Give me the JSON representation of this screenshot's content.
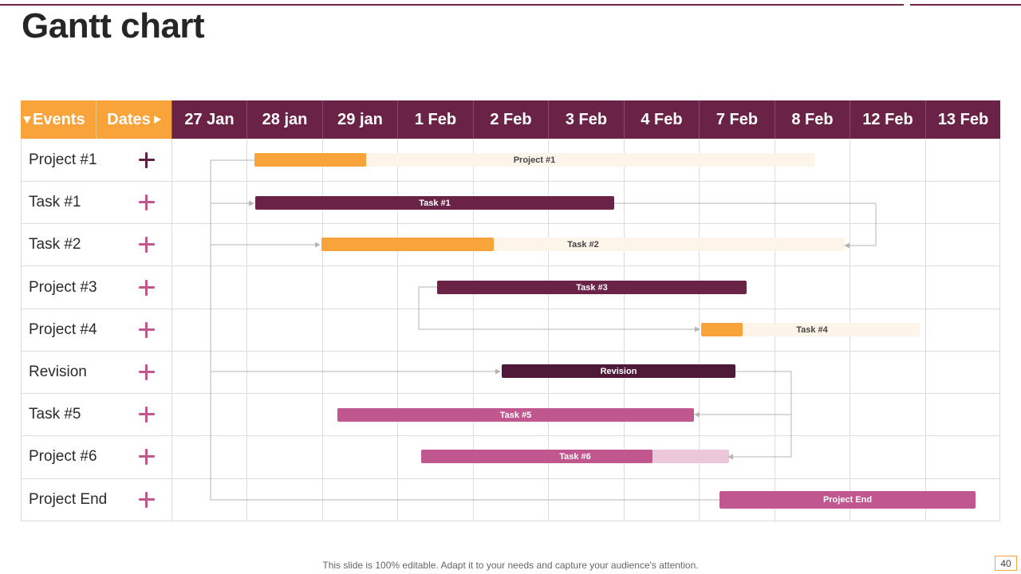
{
  "slide": {
    "title": "Gantt chart",
    "footer": "This slide is 100% editable. Adapt it to your needs and capture your audience's attention.",
    "page_number": "40"
  },
  "header": {
    "events_label": "Events",
    "dates_label": "Dates",
    "dates": [
      "27 Jan",
      "28 jan",
      "29 jan",
      "1 Feb",
      "2 Feb",
      "3 Feb",
      "4 Feb",
      "7 Feb",
      "8 Feb",
      "12 Feb",
      "13 Feb"
    ]
  },
  "rows": [
    {
      "label": "Project #1",
      "plus_color": "#5e1f40"
    },
    {
      "label": "Task #1",
      "plus_color": "#c0578f"
    },
    {
      "label": "Task #2",
      "plus_color": "#c0578f"
    },
    {
      "label": "Project #3",
      "plus_color": "#c0578f"
    },
    {
      "label": "Project #4",
      "plus_color": "#c0578f"
    },
    {
      "label": "Revision",
      "plus_color": "#c0578f"
    },
    {
      "label": "Task #5",
      "plus_color": "#c0578f"
    },
    {
      "label": "Project #6",
      "plus_color": "#c0578f"
    },
    {
      "label": "Project End",
      "plus_color": "#c0578f"
    }
  ],
  "bars": [
    {
      "label": "Project #1",
      "fill_color": "#f9a43a",
      "track_color": "#fdf4ea",
      "label_color": "#444444",
      "progress": 0.2
    },
    {
      "label": "Task #1",
      "fill_color": "#6a2347",
      "track_color": null,
      "label_color": "#ffffff",
      "progress": 1.0
    },
    {
      "label": "Task #2",
      "fill_color": "#f9a43a",
      "track_color": "#fdf4ea",
      "label_color": "#444444",
      "progress": 0.33
    },
    {
      "label": "Task #3",
      "fill_color": "#6a2347",
      "track_color": null,
      "label_color": "#ffffff",
      "progress": 1.0
    },
    {
      "label": "Task #4",
      "fill_color": "#f9a43a",
      "track_color": "#fdf4ea",
      "label_color": "#444444",
      "progress": 0.19
    },
    {
      "label": "Revision",
      "fill_color": "#4f1a38",
      "track_color": null,
      "label_color": "#ffffff",
      "progress": 1.0
    },
    {
      "label": "Task #5",
      "fill_color": "#c0578f",
      "track_color": null,
      "label_color": "#ffffff",
      "progress": 1.0
    },
    {
      "label": "Task #6",
      "fill_color": "#c0578f",
      "track_color": "#ecc6d9",
      "label_color": "#ffffff",
      "progress": 0.75
    },
    {
      "label": "Project End",
      "fill_color": "#c0578f",
      "track_color": null,
      "label_color": "#ffffff",
      "progress": 1.0
    }
  ],
  "colors": {
    "accent_orange": "#f9a43a",
    "accent_plum": "#6a2347",
    "accent_pink": "#c0578f"
  }
}
